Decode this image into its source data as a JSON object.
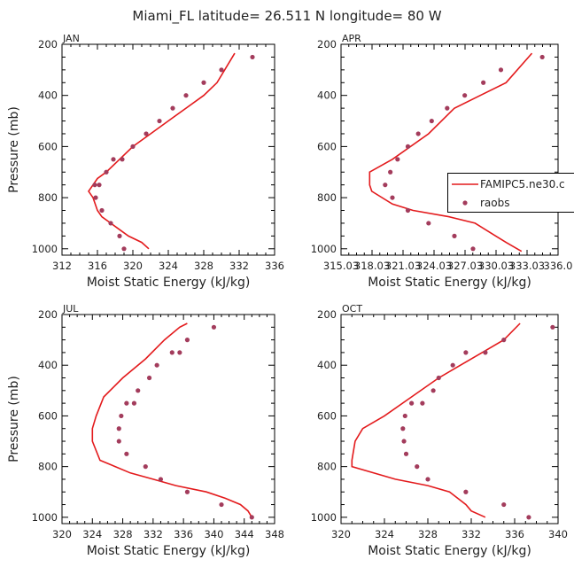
{
  "figure": {
    "title": "Miami_FL  latitude= 26.511 N longitude= 80 W",
    "model_color": "#e31a1c",
    "obs_color": "#a33c5c"
  },
  "chart_data": [
    {
      "type": "line",
      "panel": "JAN",
      "title": "JAN",
      "xlabel": "Moist Static Energy (kJ/kg)",
      "ylabel": "Pressure (mb)",
      "xlim": [
        312,
        336
      ],
      "ylim": [
        1025,
        200
      ],
      "xticks": [
        312,
        316,
        320,
        324,
        328,
        332,
        336
      ],
      "xtick_labels": [
        "312",
        "316",
        "320",
        "324",
        "328",
        "332",
        "336"
      ],
      "yticks": [
        200,
        400,
        600,
        800,
        1000
      ],
      "ytick_labels": [
        "200",
        "400",
        "600",
        "800",
        "1000"
      ],
      "series": [
        {
          "name": "FAMIPC5.ne30.c",
          "kind": "line",
          "x": [
            321.8,
            321.0,
            319.5,
            318.5,
            317.5,
            316.5,
            316.0,
            315.5,
            315.0,
            315.5,
            316.0,
            317.0,
            318.5,
            320.0,
            322.0,
            324.0,
            326.0,
            328.0,
            329.5,
            331.5
          ],
          "y": [
            1000,
            975,
            950,
            925,
            900,
            875,
            850,
            800,
            775,
            750,
            725,
            700,
            650,
            600,
            550,
            500,
            450,
            400,
            350,
            235
          ]
        },
        {
          "name": "raobs",
          "kind": "scatter",
          "x": [
            319.0,
            318.5,
            317.5,
            316.5,
            315.8,
            315.7,
            316.2,
            317.0,
            317.8,
            318.8,
            320.0,
            321.5,
            323.0,
            324.5,
            326.0,
            328.0,
            330.0,
            333.5
          ],
          "y": [
            1000,
            950,
            900,
            850,
            800,
            750,
            750,
            700,
            650,
            650,
            600,
            550,
            500,
            450,
            400,
            350,
            300,
            250
          ]
        }
      ]
    },
    {
      "type": "line",
      "panel": "APR",
      "title": "APR",
      "xlabel": "Moist Static Energy (kJ/kg)",
      "ylabel": "",
      "xlim": [
        315.03,
        336.03
      ],
      "ylim": [
        1025,
        200
      ],
      "xticks": [
        315.03,
        318.03,
        321.03,
        324.03,
        327.03,
        330.03,
        333.03,
        336.03
      ],
      "xtick_labels": [
        "315.03",
        "318.03",
        "321.03",
        "324.03",
        "327.03",
        "330.03",
        "333.03",
        "336.0"
      ],
      "yticks": [
        200,
        400,
        600,
        800,
        1000
      ],
      "ytick_labels": [
        "200",
        "400",
        "600",
        "800",
        "1000"
      ],
      "legend": {
        "position": "right",
        "entries": [
          "FAMIPC5.ne30.c",
          "raobs"
        ]
      },
      "series": [
        {
          "name": "FAMIPC5.ne30.c",
          "kind": "line",
          "x": [
            332.5,
            331.0,
            330.0,
            328.0,
            325.5,
            322.0,
            320.0,
            318.0,
            317.8,
            317.8,
            320.0,
            323.5,
            326.0,
            328.5,
            331.0,
            333.5
          ],
          "y": [
            1010,
            975,
            950,
            900,
            875,
            850,
            825,
            775,
            750,
            700,
            650,
            550,
            450,
            400,
            350,
            235
          ]
        },
        {
          "name": "raobs",
          "kind": "scatter",
          "x": [
            327.8,
            326.0,
            323.5,
            321.5,
            320.0,
            319.3,
            319.8,
            320.5,
            321.5,
            322.5,
            323.8,
            325.3,
            327.0,
            328.8,
            330.5,
            334.5
          ],
          "y": [
            1000,
            950,
            900,
            850,
            800,
            750,
            700,
            650,
            600,
            550,
            500,
            450,
            400,
            350,
            300,
            250
          ]
        }
      ]
    },
    {
      "type": "line",
      "panel": "JUL",
      "title": "JUL",
      "xlabel": "Moist Static Energy (kJ/kg)",
      "ylabel": "Pressure (mb)",
      "xlim": [
        320,
        348
      ],
      "ylim": [
        1025,
        200
      ],
      "xticks": [
        320,
        324,
        328,
        332,
        336,
        340,
        344,
        348
      ],
      "xtick_labels": [
        "320",
        "324",
        "328",
        "332",
        "336",
        "340",
        "344",
        "348"
      ],
      "yticks": [
        200,
        400,
        600,
        800,
        1000
      ],
      "ytick_labels": [
        "200",
        "400",
        "600",
        "800",
        "1000"
      ],
      "series": [
        {
          "name": "FAMIPC5.ne30.c",
          "kind": "line",
          "x": [
            345.0,
            344.5,
            343.5,
            341.5,
            339.0,
            335.0,
            332.0,
            329.0,
            327.0,
            325.0,
            324.0,
            324.0,
            324.5,
            325.5,
            328.0,
            331.0,
            333.5,
            335.5,
            336.5
          ],
          "y": [
            1000,
            975,
            950,
            925,
            900,
            875,
            850,
            825,
            800,
            775,
            700,
            650,
            600,
            525,
            450,
            375,
            300,
            250,
            235
          ]
        },
        {
          "name": "raobs",
          "kind": "scatter",
          "x": [
            345.0,
            341.0,
            336.5,
            333.0,
            331.0,
            328.5,
            327.5,
            327.5,
            327.8,
            328.5,
            329.5,
            330.0,
            331.5,
            332.5,
            334.5,
            335.5,
            336.5,
            340.0
          ],
          "y": [
            1000,
            950,
            900,
            850,
            800,
            750,
            700,
            650,
            600,
            550,
            550,
            500,
            450,
            400,
            350,
            350,
            300,
            250
          ]
        }
      ]
    },
    {
      "type": "line",
      "panel": "OCT",
      "title": "OCT",
      "xlabel": "Moist Static Energy (kJ/kg)",
      "ylabel": "",
      "xlim": [
        320,
        340
      ],
      "ylim": [
        1025,
        200
      ],
      "xticks": [
        320,
        324,
        328,
        332,
        336,
        340
      ],
      "xtick_labels": [
        "320",
        "324",
        "328",
        "332",
        "336",
        "340"
      ],
      "yticks": [
        200,
        400,
        600,
        800,
        1000
      ],
      "ytick_labels": [
        "200",
        "400",
        "600",
        "800",
        "1000"
      ],
      "series": [
        {
          "name": "FAMIPC5.ne30.c",
          "kind": "line",
          "x": [
            333.3,
            332.0,
            331.5,
            330.0,
            328.0,
            325.0,
            321.0,
            321.0,
            321.3,
            322.0,
            324.0,
            326.5,
            329.0,
            331.0,
            333.0,
            335.0,
            336.5
          ],
          "y": [
            1000,
            975,
            950,
            900,
            875,
            850,
            800,
            775,
            700,
            650,
            600,
            525,
            450,
            400,
            350,
            300,
            235
          ]
        },
        {
          "name": "raobs",
          "kind": "scatter",
          "x": [
            337.3,
            335.0,
            331.5,
            328.0,
            327.0,
            326.0,
            325.8,
            325.7,
            325.9,
            326.5,
            327.5,
            328.5,
            329.0,
            330.3,
            331.5,
            333.3,
            335.0,
            339.5
          ],
          "y": [
            1000,
            950,
            900,
            850,
            800,
            750,
            700,
            650,
            600,
            550,
            550,
            500,
            450,
            400,
            350,
            350,
            300,
            250
          ]
        }
      ]
    }
  ]
}
